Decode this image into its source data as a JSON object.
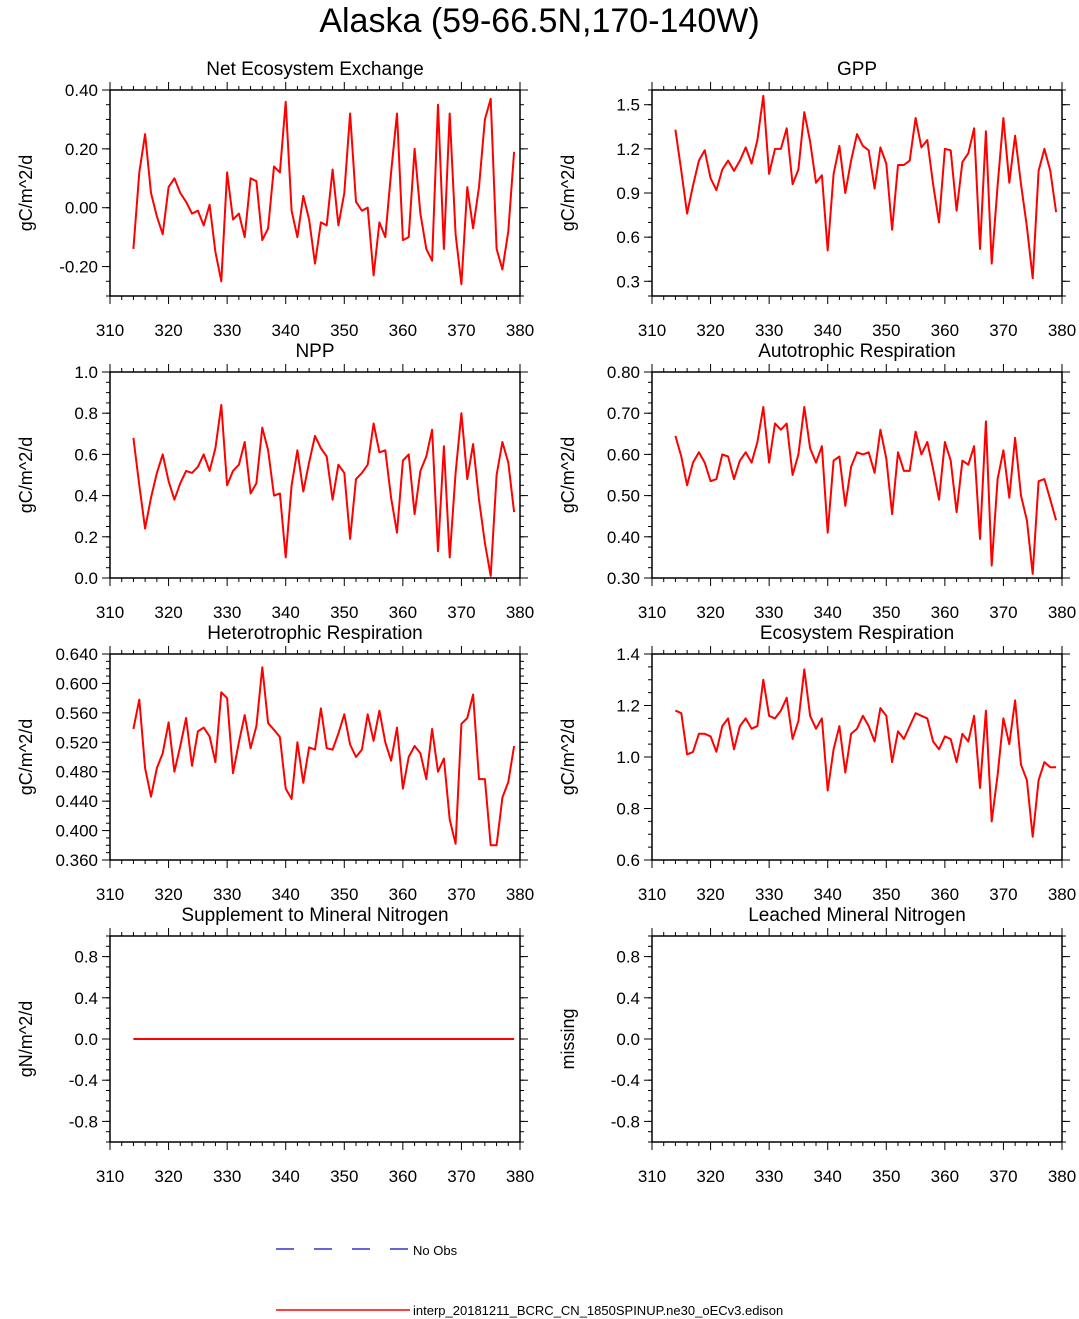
{
  "title": "Alaska (59-66.5N,170-140W)",
  "legend": {
    "placement": "bottom-center",
    "entries": [
      {
        "label": "No Obs",
        "color": "#3333cc",
        "style": "dashed"
      },
      {
        "label": "interp_20181211_BCRC_CN_1850SPINUP.ne30_oECv3.edison",
        "color": "#ff0000",
        "style": "solid"
      }
    ]
  },
  "chart_data": [
    {
      "type": "line",
      "title": "Net Ecosystem Exchange",
      "ylabel": "gC/m^2/d",
      "xlim": [
        310,
        380
      ],
      "ylim": [
        -0.3,
        0.4
      ],
      "xticks": [
        "310",
        "320",
        "330",
        "340",
        "350",
        "360",
        "370",
        "380"
      ],
      "yticks": [
        {
          "v": -0.2,
          "label": "-0.20"
        },
        {
          "v": 0.0,
          "label": "0.00"
        },
        {
          "v": 0.2,
          "label": "0.20"
        },
        {
          "v": 0.4,
          "label": "0.40"
        }
      ],
      "yminor": 0.05,
      "series": [
        {
          "color": "#ff0000",
          "x_start": 314,
          "values": [
            -0.14,
            0.12,
            0.25,
            0.05,
            -0.03,
            -0.09,
            0.07,
            0.1,
            0.05,
            0.02,
            -0.02,
            -0.01,
            -0.06,
            0.01,
            -0.15,
            -0.25,
            0.12,
            -0.04,
            -0.02,
            -0.1,
            0.1,
            0.09,
            -0.11,
            -0.07,
            0.14,
            0.12,
            0.36,
            -0.01,
            -0.1,
            0.04,
            -0.04,
            -0.19,
            -0.05,
            -0.06,
            0.13,
            -0.06,
            0.05,
            0.32,
            0.02,
            -0.01,
            0.0,
            -0.23,
            -0.05,
            -0.1,
            0.12,
            0.32,
            -0.11,
            -0.1,
            0.2,
            -0.02,
            -0.14,
            -0.18,
            0.35,
            -0.14,
            0.32,
            -0.09,
            -0.26,
            0.07,
            -0.07,
            0.07,
            0.3,
            0.37,
            -0.14,
            -0.21,
            -0.08,
            0.19
          ]
        }
      ]
    },
    {
      "type": "line",
      "title": "GPP",
      "ylabel": "gC/m^2/d",
      "xlim": [
        310,
        380
      ],
      "ylim": [
        0.2,
        1.6
      ],
      "xticks": [
        "310",
        "320",
        "330",
        "340",
        "350",
        "360",
        "370",
        "380"
      ],
      "yticks": [
        {
          "v": 0.3,
          "label": "0.3"
        },
        {
          "v": 0.6,
          "label": "0.6"
        },
        {
          "v": 0.9,
          "label": "0.9"
        },
        {
          "v": 1.2,
          "label": "1.2"
        },
        {
          "v": 1.5,
          "label": "1.5"
        }
      ],
      "yminor": 0.1,
      "series": [
        {
          "color": "#ff0000",
          "x_start": 314,
          "values": [
            1.33,
            1.05,
            0.76,
            0.95,
            1.12,
            1.19,
            1.0,
            0.92,
            1.06,
            1.12,
            1.05,
            1.12,
            1.21,
            1.1,
            1.26,
            1.56,
            1.03,
            1.2,
            1.2,
            1.34,
            0.96,
            1.06,
            1.45,
            1.25,
            0.97,
            1.02,
            0.51,
            1.03,
            1.22,
            0.9,
            1.12,
            1.3,
            1.22,
            1.19,
            0.93,
            1.21,
            1.1,
            0.65,
            1.09,
            1.09,
            1.12,
            1.41,
            1.21,
            1.26,
            0.96,
            0.7,
            1.2,
            1.19,
            0.78,
            1.11,
            1.17,
            1.34,
            0.52,
            1.32,
            0.42,
            0.95,
            1.41,
            0.97,
            1.29,
            0.96,
            0.67,
            0.32,
            1.05,
            1.2,
            1.05,
            0.77
          ]
        }
      ]
    },
    {
      "type": "line",
      "title": "NPP",
      "ylabel": "gC/m^2/d",
      "xlim": [
        310,
        380
      ],
      "ylim": [
        0.0,
        1.0
      ],
      "xticks": [
        "310",
        "320",
        "330",
        "340",
        "350",
        "360",
        "370",
        "380"
      ],
      "yticks": [
        {
          "v": 0.0,
          "label": "0.0"
        },
        {
          "v": 0.2,
          "label": "0.2"
        },
        {
          "v": 0.4,
          "label": "0.4"
        },
        {
          "v": 0.6,
          "label": "0.6"
        },
        {
          "v": 0.8,
          "label": "0.8"
        },
        {
          "v": 1.0,
          "label": "1.0"
        }
      ],
      "yminor": 0.05,
      "series": [
        {
          "color": "#ff0000",
          "x_start": 314,
          "values": [
            0.68,
            0.45,
            0.24,
            0.39,
            0.51,
            0.6,
            0.47,
            0.38,
            0.46,
            0.52,
            0.51,
            0.54,
            0.6,
            0.52,
            0.63,
            0.84,
            0.45,
            0.52,
            0.55,
            0.66,
            0.41,
            0.46,
            0.73,
            0.62,
            0.4,
            0.41,
            0.1,
            0.45,
            0.62,
            0.42,
            0.56,
            0.69,
            0.63,
            0.59,
            0.38,
            0.55,
            0.51,
            0.19,
            0.48,
            0.51,
            0.55,
            0.75,
            0.61,
            0.62,
            0.39,
            0.22,
            0.57,
            0.6,
            0.31,
            0.52,
            0.59,
            0.72,
            0.13,
            0.64,
            0.1,
            0.51,
            0.8,
            0.48,
            0.65,
            0.38,
            0.17,
            0.01,
            0.5,
            0.66,
            0.56,
            0.32
          ]
        }
      ]
    },
    {
      "type": "line",
      "title": "Autotrophic Respiration",
      "ylabel": "gC/m^2/d",
      "xlim": [
        310,
        380
      ],
      "ylim": [
        0.3,
        0.8
      ],
      "xticks": [
        "310",
        "320",
        "330",
        "340",
        "350",
        "360",
        "370",
        "380"
      ],
      "yticks": [
        {
          "v": 0.3,
          "label": "0.30"
        },
        {
          "v": 0.4,
          "label": "0.40"
        },
        {
          "v": 0.5,
          "label": "0.50"
        },
        {
          "v": 0.6,
          "label": "0.60"
        },
        {
          "v": 0.7,
          "label": "0.70"
        },
        {
          "v": 0.8,
          "label": "0.80"
        }
      ],
      "yminor": 0.025,
      "series": [
        {
          "color": "#ff0000",
          "x_start": 314,
          "values": [
            0.645,
            0.595,
            0.525,
            0.58,
            0.605,
            0.58,
            0.535,
            0.54,
            0.6,
            0.595,
            0.54,
            0.585,
            0.605,
            0.58,
            0.63,
            0.715,
            0.58,
            0.675,
            0.66,
            0.675,
            0.55,
            0.6,
            0.715,
            0.615,
            0.58,
            0.62,
            0.41,
            0.585,
            0.595,
            0.475,
            0.57,
            0.605,
            0.6,
            0.605,
            0.555,
            0.66,
            0.59,
            0.455,
            0.605,
            0.56,
            0.56,
            0.655,
            0.6,
            0.63,
            0.565,
            0.49,
            0.63,
            0.585,
            0.46,
            0.585,
            0.575,
            0.62,
            0.395,
            0.68,
            0.33,
            0.54,
            0.61,
            0.495,
            0.64,
            0.5,
            0.44,
            0.31,
            0.535,
            0.54,
            0.49,
            0.44
          ]
        }
      ]
    },
    {
      "type": "line",
      "title": "Heterotrophic Respiration",
      "ylabel": "gC/m^2/d",
      "xlim": [
        310,
        380
      ],
      "ylim": [
        0.36,
        0.64
      ],
      "xticks": [
        "310",
        "320",
        "330",
        "340",
        "350",
        "360",
        "370",
        "380"
      ],
      "yticks": [
        {
          "v": 0.36,
          "label": "0.360"
        },
        {
          "v": 0.4,
          "label": "0.400"
        },
        {
          "v": 0.44,
          "label": "0.440"
        },
        {
          "v": 0.48,
          "label": "0.480"
        },
        {
          "v": 0.52,
          "label": "0.520"
        },
        {
          "v": 0.56,
          "label": "0.560"
        },
        {
          "v": 0.6,
          "label": "0.600"
        },
        {
          "v": 0.64,
          "label": "0.640"
        }
      ],
      "yminor": 0.01,
      "series": [
        {
          "color": "#ff0000",
          "x_start": 314,
          "values": [
            0.538,
            0.578,
            0.485,
            0.446,
            0.485,
            0.505,
            0.547,
            0.48,
            0.515,
            0.553,
            0.488,
            0.535,
            0.54,
            0.528,
            0.493,
            0.588,
            0.58,
            0.478,
            0.52,
            0.557,
            0.512,
            0.542,
            0.622,
            0.546,
            0.537,
            0.527,
            0.457,
            0.443,
            0.52,
            0.465,
            0.513,
            0.51,
            0.566,
            0.512,
            0.51,
            0.532,
            0.558,
            0.517,
            0.5,
            0.51,
            0.558,
            0.522,
            0.563,
            0.52,
            0.495,
            0.54,
            0.457,
            0.5,
            0.515,
            0.505,
            0.47,
            0.538,
            0.48,
            0.498,
            0.415,
            0.382,
            0.545,
            0.553,
            0.585,
            0.47,
            0.47,
            0.38,
            0.38,
            0.445,
            0.466,
            0.515
          ]
        }
      ]
    },
    {
      "type": "line",
      "title": "Ecosystem Respiration",
      "ylabel": "gC/m^2/d",
      "xlim": [
        310,
        380
      ],
      "ylim": [
        0.6,
        1.4
      ],
      "xticks": [
        "310",
        "320",
        "330",
        "340",
        "350",
        "360",
        "370",
        "380"
      ],
      "yticks": [
        {
          "v": 0.6,
          "label": "0.6"
        },
        {
          "v": 0.8,
          "label": "0.8"
        },
        {
          "v": 1.0,
          "label": "1.0"
        },
        {
          "v": 1.2,
          "label": "1.2"
        },
        {
          "v": 1.4,
          "label": "1.4"
        }
      ],
      "yminor": 0.05,
      "series": [
        {
          "color": "#ff0000",
          "x_start": 314,
          "values": [
            1.18,
            1.17,
            1.01,
            1.02,
            1.09,
            1.09,
            1.08,
            1.02,
            1.12,
            1.15,
            1.03,
            1.12,
            1.15,
            1.11,
            1.12,
            1.3,
            1.16,
            1.15,
            1.18,
            1.23,
            1.07,
            1.14,
            1.34,
            1.16,
            1.11,
            1.15,
            0.87,
            1.03,
            1.12,
            0.94,
            1.09,
            1.11,
            1.16,
            1.12,
            1.06,
            1.19,
            1.16,
            0.98,
            1.1,
            1.07,
            1.12,
            1.17,
            1.16,
            1.15,
            1.06,
            1.03,
            1.08,
            1.07,
            0.98,
            1.09,
            1.06,
            1.16,
            0.88,
            1.18,
            0.75,
            0.93,
            1.15,
            1.05,
            1.22,
            0.97,
            0.91,
            0.69,
            0.91,
            0.98,
            0.96,
            0.96
          ]
        }
      ]
    },
    {
      "type": "line",
      "title": "Supplement to Mineral Nitrogen",
      "ylabel": "gN/m^2/d",
      "xlim": [
        310,
        380
      ],
      "ylim": [
        -1.0,
        1.0
      ],
      "xticks": [
        "310",
        "320",
        "330",
        "340",
        "350",
        "360",
        "370",
        "380"
      ],
      "yticks": [
        {
          "v": -0.8,
          "label": "-0.8"
        },
        {
          "v": -0.4,
          "label": "-0.4"
        },
        {
          "v": 0.0,
          "label": "0.0"
        },
        {
          "v": 0.4,
          "label": "0.4"
        },
        {
          "v": 0.8,
          "label": "0.8"
        }
      ],
      "yminor": 0.1,
      "series": [
        {
          "color": "#ff0000",
          "x": [
            314,
            379
          ],
          "values": [
            0.0,
            0.0
          ]
        }
      ]
    },
    {
      "type": "line",
      "title": "Leached Mineral Nitrogen",
      "ylabel": "missing",
      "xlim": [
        310,
        380
      ],
      "ylim": [
        -1.0,
        1.0
      ],
      "xticks": [
        "310",
        "320",
        "330",
        "340",
        "350",
        "360",
        "370",
        "380"
      ],
      "yticks": [
        {
          "v": -0.8,
          "label": "-0.8"
        },
        {
          "v": -0.4,
          "label": "-0.4"
        },
        {
          "v": 0.0,
          "label": "0.0"
        },
        {
          "v": 0.4,
          "label": "0.4"
        },
        {
          "v": 0.8,
          "label": "0.8"
        }
      ],
      "yminor": 0.1,
      "series": []
    }
  ]
}
